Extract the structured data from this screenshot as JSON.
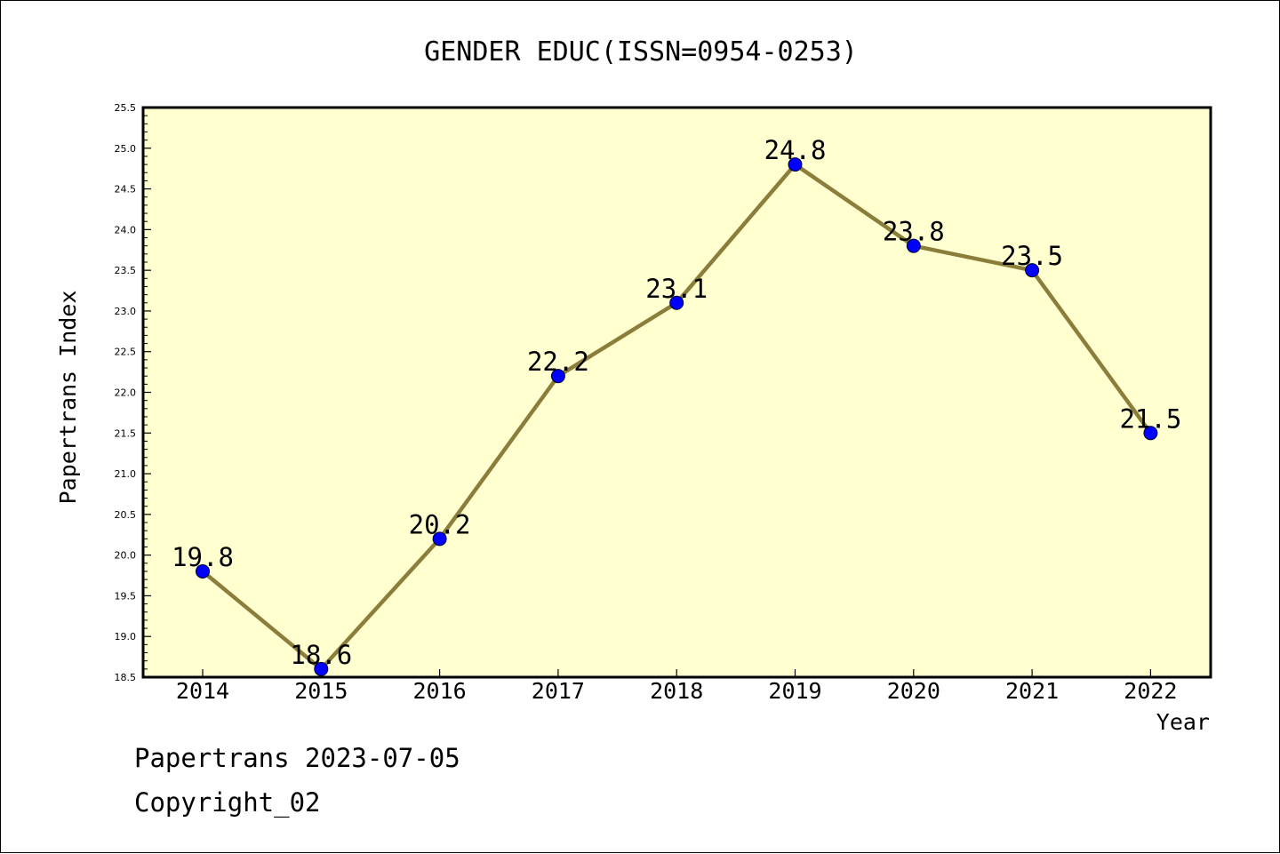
{
  "chart_data": {
    "type": "line",
    "title": "GENDER EDUC(ISSN=0954-0253)",
    "xlabel": "Year",
    "ylabel": "Papertrans Index",
    "categories": [
      "2014",
      "2015",
      "2016",
      "2017",
      "2018",
      "2019",
      "2020",
      "2021",
      "2022"
    ],
    "series": [
      {
        "values": [
          19.8,
          18.6,
          20.2,
          22.2,
          23.1,
          24.8,
          23.8,
          23.5,
          21.5
        ],
        "labels": [
          "19.8",
          "18.6",
          "20.2",
          "22.2",
          "23.1",
          "24.8",
          "23.8",
          "23.5",
          "21.5"
        ]
      }
    ],
    "ylim": [
      18.5,
      25.5
    ],
    "yticks": [
      "18.5",
      "19.0",
      "19.5",
      "20.0",
      "20.5",
      "21.0",
      "21.5",
      "22.0",
      "22.5",
      "23.0",
      "23.5",
      "24.0",
      "24.5",
      "25.0",
      "25.5"
    ],
    "grid": false,
    "colors": {
      "plot_background": "#ffffd0",
      "line": "#8b7d3a",
      "marker": "#0000ff"
    }
  },
  "footer": {
    "line1": "Papertrans 2023-07-05",
    "line2": "Copyright_02"
  }
}
